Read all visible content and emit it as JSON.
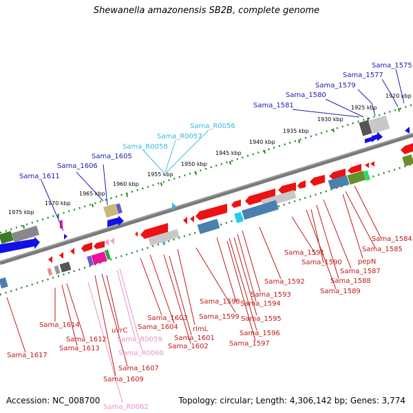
{
  "title": "Shewanella amazonensis SB2B, complete genome",
  "footer": {
    "accession": "Accession: NC_008700",
    "stats": "Topology: circular; Length: 4,306,142 bp; Genes: 3,774"
  },
  "colors": {
    "upper_label": "#1a1ab3",
    "rna_upper": "#33bbdd",
    "lower_label": "#c01818",
    "rna_lower": "#e890c8",
    "dots": "#228822",
    "backbone": "#777777"
  },
  "scale": {
    "unit": "kbp",
    "ticks": [
      "1920 kbp",
      "1925 kbp",
      "1930 kbp",
      "1935 kbp",
      "1940 kbp",
      "1945 kbp",
      "1950 kbp",
      "1955 kbp",
      "1960 kbp",
      "1965 kbp",
      "1970 kbp",
      "1975 kbp"
    ]
  },
  "upper_labels": [
    {
      "id": "u1575",
      "text": "Sama_1575",
      "kind": "gene"
    },
    {
      "id": "u1577",
      "text": "Sama_1577",
      "kind": "gene"
    },
    {
      "id": "u1579",
      "text": "Sama_1579",
      "kind": "gene"
    },
    {
      "id": "u1580",
      "text": "Sama_1580",
      "kind": "gene"
    },
    {
      "id": "u1581",
      "text": "Sama_1581",
      "kind": "gene"
    },
    {
      "id": "uR0056",
      "text": "Sama_R0056",
      "kind": "rna"
    },
    {
      "id": "uR0057",
      "text": "Sama_R0057",
      "kind": "rna"
    },
    {
      "id": "uR0058",
      "text": "Sama_R0058",
      "kind": "rna"
    },
    {
      "id": "u1605",
      "text": "Sama_1605",
      "kind": "gene"
    },
    {
      "id": "u1606",
      "text": "Sama_1606",
      "kind": "gene"
    },
    {
      "id": "u1611",
      "text": "Sama_1611",
      "kind": "gene"
    }
  ],
  "lower_labels": [
    {
      "id": "l1584",
      "text": "Sama_1584",
      "kind": "gene"
    },
    {
      "id": "l1585",
      "text": "Sama_1585",
      "kind": "gene"
    },
    {
      "id": "lpepN",
      "text": "pepN",
      "kind": "gene"
    },
    {
      "id": "l1587",
      "text": "Sama_1587",
      "kind": "gene"
    },
    {
      "id": "l1591",
      "text": "Sama_1591",
      "kind": "gene"
    },
    {
      "id": "l1590",
      "text": "Sama_1590",
      "kind": "gene"
    },
    {
      "id": "l1588",
      "text": "Sama_1588",
      "kind": "gene"
    },
    {
      "id": "l1589",
      "text": "Sama_1589",
      "kind": "gene"
    },
    {
      "id": "l1592",
      "text": "Sama_1592",
      "kind": "gene"
    },
    {
      "id": "l1593",
      "text": "Sama_1593",
      "kind": "gene"
    },
    {
      "id": "l1598",
      "text": "Sama_1598",
      "kind": "gene"
    },
    {
      "id": "l1594",
      "text": "Sama_1594",
      "kind": "gene"
    },
    {
      "id": "l1599",
      "text": "Sama_1599",
      "kind": "gene"
    },
    {
      "id": "l1595",
      "text": "Sama_1595",
      "kind": "gene"
    },
    {
      "id": "l1603",
      "text": "Sama_1603",
      "kind": "gene"
    },
    {
      "id": "l1604",
      "text": "Sama_1604",
      "kind": "gene"
    },
    {
      "id": "lrlmL",
      "text": "rlmL",
      "kind": "gene"
    },
    {
      "id": "l1596",
      "text": "Sama_1596",
      "kind": "gene"
    },
    {
      "id": "l1601",
      "text": "Sama_1601",
      "kind": "gene"
    },
    {
      "id": "l1597",
      "text": "Sama_1597",
      "kind": "gene"
    },
    {
      "id": "l1602",
      "text": "Sama_1602",
      "kind": "gene"
    },
    {
      "id": "l1614",
      "text": "Sama_1614",
      "kind": "gene"
    },
    {
      "id": "luvrC",
      "text": "uvrC",
      "kind": "gene"
    },
    {
      "id": "l1612",
      "text": "Sama_1612",
      "kind": "gene"
    },
    {
      "id": "lR0059",
      "text": "Sama_R0059",
      "kind": "rna"
    },
    {
      "id": "l1613",
      "text": "Sama_1613",
      "kind": "gene"
    },
    {
      "id": "l1617",
      "text": "Sama_1617",
      "kind": "gene"
    },
    {
      "id": "lR0060",
      "text": "Sama_R0060",
      "kind": "rna"
    },
    {
      "id": "l1607",
      "text": "Sama_1607",
      "kind": "gene"
    },
    {
      "id": "l1609",
      "text": "Sama_1609",
      "kind": "gene"
    },
    {
      "id": "lR0062",
      "text": "Sama_R0062",
      "kind": "rna"
    }
  ]
}
